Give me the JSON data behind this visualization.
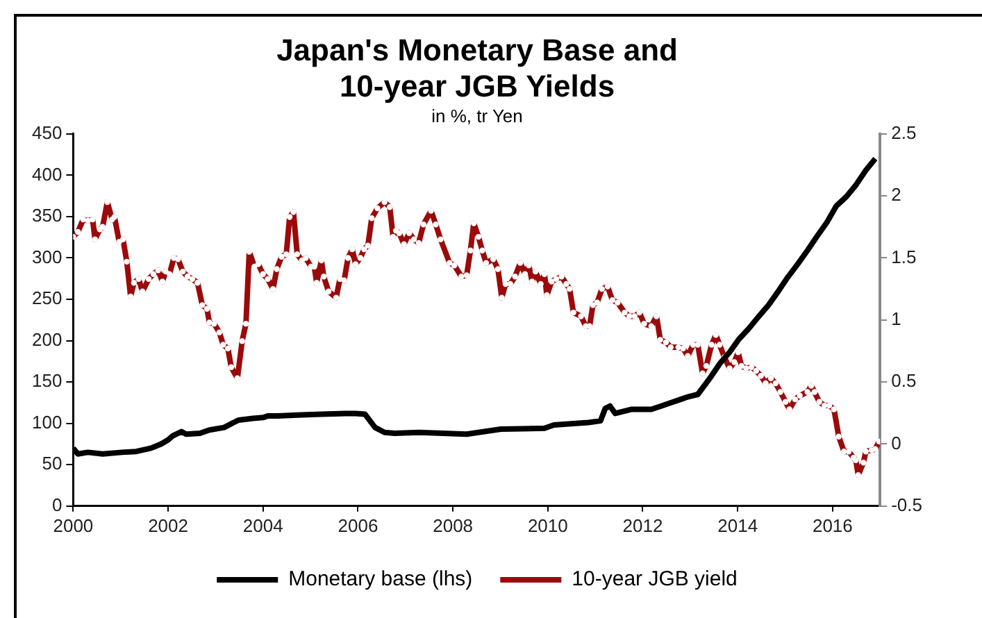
{
  "chart_data": {
    "type": "line",
    "title": "Japan's Monetary Base and\n10-year JGB Yields",
    "subtitle": "in %, tr Yen",
    "xlim": [
      2000,
      2017
    ],
    "xticks": [
      2000,
      2002,
      2004,
      2006,
      2008,
      2010,
      2012,
      2014,
      2016
    ],
    "ylim": [
      0,
      450
    ],
    "yticks": [
      0,
      50,
      100,
      150,
      200,
      250,
      300,
      350,
      400,
      450
    ],
    "y2lim": [
      -0.5,
      2.5
    ],
    "y2ticks": [
      -0.5,
      0,
      0.5,
      1,
      1.5,
      2,
      2.5
    ],
    "grid": false,
    "legend": "bottom",
    "series": [
      {
        "name": "Monetary base (lhs)",
        "color": "#000000",
        "marker": "none",
        "x": [
          2000.0,
          2000.1,
          2000.31,
          2000.62,
          2001.03,
          2001.33,
          2001.64,
          2001.85,
          2002.0,
          2002.1,
          2002.28,
          2002.38,
          2002.67,
          2002.87,
          2003.18,
          2003.38,
          2003.49,
          2003.79,
          2004.0,
          2004.1,
          2004.31,
          2004.72,
          2005.23,
          2005.74,
          2005.95,
          2006.15,
          2006.36,
          2006.56,
          2006.77,
          2007.28,
          2007.79,
          2008.29,
          2009.01,
          2009.93,
          2010.13,
          2010.85,
          2011.11,
          2011.21,
          2011.31,
          2011.42,
          2011.77,
          2012.18,
          2012.39,
          2012.59,
          2012.8,
          2012.95,
          2013.16,
          2013.42,
          2013.62,
          2013.83,
          2014.03,
          2014.24,
          2014.44,
          2014.65,
          2014.86,
          2015.06,
          2015.27,
          2015.47,
          2015.67,
          2015.88,
          2016.08,
          2016.29,
          2016.49,
          2016.7,
          2016.9
        ],
        "values": [
          70,
          63,
          65,
          63,
          65,
          66,
          70,
          75,
          80,
          85,
          90,
          87,
          88,
          92,
          95,
          101,
          104,
          106,
          107,
          109,
          109,
          110,
          111,
          112,
          112,
          111,
          95,
          89,
          88,
          89,
          88,
          87,
          93,
          94,
          98,
          101,
          103,
          118,
          121,
          112,
          117,
          117,
          121,
          125,
          129,
          132,
          135,
          155,
          172,
          186,
          202,
          215,
          229,
          243,
          260,
          277,
          293,
          309,
          326,
          343,
          363,
          374,
          388,
          406,
          420
        ]
      },
      {
        "name": "10-year JGB yield",
        "color": "#9b0a0a",
        "marker": "circle",
        "axis": "y2",
        "x": [
          2000.0,
          2000.1,
          2000.21,
          2000.31,
          2000.41,
          2000.46,
          2000.56,
          2000.62,
          2000.72,
          2000.82,
          2000.87,
          2000.97,
          2001.05,
          2001.13,
          2001.21,
          2001.28,
          2001.38,
          2001.46,
          2001.59,
          2001.69,
          2001.79,
          2001.88,
          2001.95,
          2002.03,
          2002.12,
          2002.21,
          2002.31,
          2002.41,
          2002.51,
          2002.62,
          2002.72,
          2002.82,
          2002.87,
          2002.97,
          2003.08,
          2003.16,
          2003.26,
          2003.33,
          2003.46,
          2003.56,
          2003.64,
          2003.71,
          2003.82,
          2003.9,
          2004.0,
          2004.1,
          2004.21,
          2004.29,
          2004.39,
          2004.49,
          2004.56,
          2004.64,
          2004.72,
          2004.82,
          2004.9,
          2005.01,
          2005.08,
          2005.13,
          2005.23,
          2005.28,
          2005.38,
          2005.54,
          2005.62,
          2005.71,
          2005.79,
          2005.88,
          2005.95,
          2006.05,
          2006.13,
          2006.21,
          2006.29,
          2006.41,
          2006.56,
          2006.67,
          2006.74,
          2006.8,
          2006.87,
          2006.97,
          2007.08,
          2007.18,
          2007.28,
          2007.38,
          2007.54,
          2007.64,
          2007.74,
          2007.93,
          2008.03,
          2008.18,
          2008.29,
          2008.37,
          2008.44,
          2008.54,
          2008.62,
          2008.7,
          2008.85,
          2008.95,
          2009.03,
          2009.11,
          2009.21,
          2009.31,
          2009.42,
          2009.52,
          2009.6,
          2009.67,
          2009.74,
          2009.85,
          2009.93,
          2009.98,
          2010.08,
          2010.18,
          2010.29,
          2010.39,
          2010.46,
          2010.54,
          2010.7,
          2010.8,
          2010.88,
          2010.95,
          2011.04,
          2011.14,
          2011.26,
          2011.36,
          2011.47,
          2011.62,
          2011.72,
          2011.83,
          2011.93,
          2012.03,
          2012.18,
          2012.29,
          2012.37,
          2012.49,
          2012.59,
          2012.75,
          2012.85,
          2012.95,
          2013.06,
          2013.16,
          2013.26,
          2013.34,
          2013.45,
          2013.54,
          2013.62,
          2013.72,
          2013.83,
          2013.93,
          2014.01,
          2014.08,
          2014.18,
          2014.29,
          2014.39,
          2014.49,
          2014.59,
          2014.7,
          2014.8,
          2014.9,
          2015.01,
          2015.09,
          2015.21,
          2015.31,
          2015.47,
          2015.55,
          2015.62,
          2015.72,
          2015.83,
          2015.93,
          2016.03,
          2016.13,
          2016.24,
          2016.34,
          2016.44,
          2016.49,
          2016.54,
          2016.65,
          2016.7,
          2016.82,
          2016.9,
          2016.98
        ],
        "values": [
          1.67,
          1.71,
          1.81,
          1.8,
          1.81,
          1.65,
          1.73,
          1.75,
          1.95,
          1.81,
          1.83,
          1.63,
          1.65,
          1.47,
          1.19,
          1.3,
          1.33,
          1.23,
          1.33,
          1.37,
          1.4,
          1.31,
          1.39,
          1.37,
          1.5,
          1.49,
          1.39,
          1.35,
          1.33,
          1.3,
          1.12,
          1.09,
          0.98,
          0.97,
          0.9,
          0.8,
          0.77,
          0.62,
          0.53,
          0.83,
          0.97,
          1.55,
          1.43,
          1.45,
          1.37,
          1.33,
          1.25,
          1.41,
          1.51,
          1.53,
          1.83,
          1.87,
          1.53,
          1.48,
          1.5,
          1.43,
          1.43,
          1.3,
          1.48,
          1.35,
          1.23,
          1.18,
          1.33,
          1.32,
          1.5,
          1.57,
          1.45,
          1.5,
          1.57,
          1.6,
          1.82,
          1.9,
          1.95,
          1.91,
          1.67,
          1.72,
          1.7,
          1.61,
          1.7,
          1.65,
          1.62,
          1.77,
          1.88,
          1.77,
          1.65,
          1.46,
          1.44,
          1.35,
          1.36,
          1.56,
          1.78,
          1.67,
          1.56,
          1.46,
          1.49,
          1.41,
          1.18,
          1.29,
          1.29,
          1.35,
          1.46,
          1.37,
          1.44,
          1.31,
          1.39,
          1.29,
          1.37,
          1.2,
          1.31,
          1.33,
          1.35,
          1.29,
          1.25,
          1.06,
          1.03,
          0.95,
          0.95,
          1.12,
          1.14,
          1.25,
          1.27,
          1.16,
          1.14,
          1.06,
          1.03,
          1.03,
          1.06,
          0.97,
          0.95,
          1.03,
          0.84,
          0.82,
          0.78,
          0.78,
          0.77,
          0.71,
          0.8,
          0.8,
          0.57,
          0.63,
          0.8,
          0.88,
          0.8,
          0.7,
          0.61,
          0.66,
          0.74,
          0.63,
          0.61,
          0.62,
          0.59,
          0.55,
          0.49,
          0.53,
          0.49,
          0.42,
          0.34,
          0.28,
          0.36,
          0.39,
          0.42,
          0.47,
          0.42,
          0.34,
          0.31,
          0.31,
          0.28,
          0.06,
          -0.06,
          -0.06,
          -0.11,
          -0.13,
          -0.25,
          -0.15,
          -0.06,
          -0.05,
          -0.04,
          0.02
        ]
      }
    ]
  }
}
